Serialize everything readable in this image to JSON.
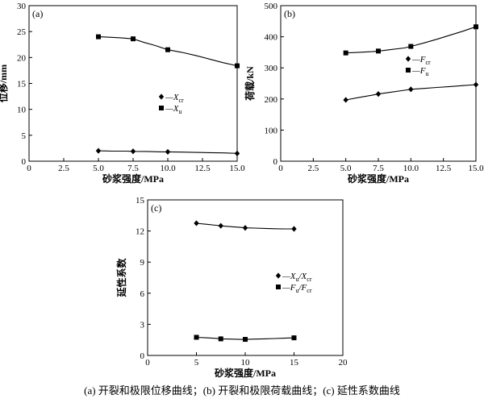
{
  "caption": "(a) 开裂和极限位移曲线；(b) 开裂和极限荷载曲线；(c) 延性系数曲线",
  "chart_data": [
    {
      "id": "a",
      "type": "line",
      "panel_label": "(a)",
      "xlabel": "砂浆强度/MPa",
      "ylabel": "位移/mm",
      "xlim": [
        0,
        15
      ],
      "ylim": [
        0,
        30
      ],
      "xticks": [
        "0",
        "2.5",
        "5.0",
        "7.5",
        "10.0",
        "12.5",
        "15.0"
      ],
      "xtick_values": [
        0,
        2.5,
        5,
        7.5,
        10,
        12.5,
        15
      ],
      "yticks": [
        "0",
        "5",
        "10",
        "15",
        "20",
        "25",
        "30"
      ],
      "ytick_values": [
        0,
        5,
        10,
        15,
        20,
        25,
        30
      ],
      "legend_position": "center-right",
      "series": [
        {
          "name": "—Xcr",
          "legend_main": "—X",
          "legend_sub": "cr",
          "marker": "diamond",
          "x": [
            5,
            7.5,
            10,
            15
          ],
          "y": [
            2.0,
            1.9,
            1.8,
            1.5
          ],
          "path_x": [
            5,
            6,
            7,
            7.5,
            8.5,
            9.5,
            10,
            11,
            12,
            13,
            14,
            15
          ],
          "path_y": [
            2.0,
            1.95,
            1.95,
            1.9,
            1.88,
            1.8,
            1.8,
            1.75,
            1.7,
            1.65,
            1.6,
            1.5
          ]
        },
        {
          "name": "—Xu",
          "legend_main": "—X",
          "legend_sub": "u",
          "marker": "square",
          "x": [
            5,
            7.5,
            10,
            15
          ],
          "y": [
            24.0,
            23.6,
            21.5,
            18.4
          ],
          "path_x": [
            5,
            5.8,
            6.6,
            7.5,
            8.3,
            9.1,
            10,
            11,
            12,
            13,
            14,
            15
          ],
          "path_y": [
            24.0,
            23.9,
            23.8,
            23.6,
            22.9,
            22.3,
            21.5,
            21.0,
            20.4,
            19.7,
            19.0,
            18.4
          ]
        }
      ]
    },
    {
      "id": "b",
      "type": "line",
      "panel_label": "(b)",
      "xlabel": "砂浆强度/MPa",
      "ylabel": "荷载/kN",
      "xlim": [
        0,
        15
      ],
      "ylim": [
        0,
        500
      ],
      "xticks": [
        "0",
        "2.5",
        "5.0",
        "7.5",
        "10.0",
        "12.5",
        "15.0"
      ],
      "xtick_values": [
        0,
        2.5,
        5,
        7.5,
        10,
        12.5,
        15
      ],
      "yticks": [
        "0",
        "100",
        "200",
        "300",
        "400",
        "500"
      ],
      "ytick_values": [
        0,
        100,
        200,
        300,
        400,
        500
      ],
      "legend_position": "center-right",
      "series": [
        {
          "name": "—Fcr",
          "legend_main": "—F",
          "legend_sub": "cr",
          "marker": "diamond",
          "x": [
            5,
            7.5,
            10,
            15
          ],
          "y": [
            197,
            216,
            231,
            246
          ],
          "path_x": [
            5,
            6,
            7,
            7.5,
            8.5,
            9.5,
            10,
            11,
            12,
            13,
            14,
            15
          ],
          "path_y": [
            197,
            205,
            212,
            216,
            222,
            228,
            231,
            234,
            237,
            240,
            243,
            246
          ]
        },
        {
          "name": "—Fu",
          "legend_main": "—F",
          "legend_sub": "u",
          "marker": "square",
          "x": [
            5,
            7.5,
            10,
            15
          ],
          "y": [
            348,
            354,
            369,
            432
          ],
          "path_x": [
            5,
            6,
            7,
            7.5,
            8.5,
            9.5,
            10,
            11,
            12,
            13,
            14,
            15
          ],
          "path_y": [
            348,
            350,
            352,
            354,
            359,
            364,
            369,
            380,
            392,
            405,
            418,
            432
          ]
        }
      ]
    },
    {
      "id": "c",
      "type": "line",
      "panel_label": "(c)",
      "xlabel": "砂浆强度/MPa",
      "ylabel": "延性系数",
      "xlim": [
        0,
        20
      ],
      "ylim": [
        0,
        15
      ],
      "xticks": [
        "0",
        "5",
        "10",
        "15",
        "20"
      ],
      "xtick_values": [
        0,
        5,
        10,
        15,
        20
      ],
      "yticks": [
        "0",
        "3",
        "6",
        "9",
        "12",
        "15"
      ],
      "ytick_values": [
        0,
        3,
        6,
        9,
        12,
        15
      ],
      "legend_position": "center-right",
      "series": [
        {
          "name": "—Xu/Xcr",
          "legend_parts": [
            [
              "—X",
              ""
            ],
            [
              "u",
              "sub"
            ],
            [
              "/X",
              ""
            ],
            [
              "cr",
              "sub"
            ]
          ],
          "marker": "diamond",
          "x": [
            5,
            7.5,
            10,
            15
          ],
          "y": [
            12.75,
            12.5,
            12.3,
            12.2
          ],
          "path_x": [
            5,
            6,
            7,
            7.5,
            8.5,
            9.5,
            10,
            11,
            12,
            13,
            14,
            15
          ],
          "path_y": [
            12.75,
            12.65,
            12.55,
            12.5,
            12.42,
            12.35,
            12.3,
            12.28,
            12.25,
            12.22,
            12.2,
            12.2
          ]
        },
        {
          "name": "—Fu/Fcr",
          "legend_parts": [
            [
              "—F",
              ""
            ],
            [
              "u",
              "sub"
            ],
            [
              "/F",
              ""
            ],
            [
              "cr",
              "sub"
            ]
          ],
          "marker": "square",
          "x": [
            5,
            7.5,
            10,
            15
          ],
          "y": [
            1.75,
            1.6,
            1.55,
            1.7
          ],
          "path_x": [
            5,
            6,
            7,
            7.5,
            8.5,
            9.5,
            10,
            11,
            12,
            13,
            14,
            15
          ],
          "path_y": [
            1.75,
            1.7,
            1.65,
            1.6,
            1.58,
            1.55,
            1.55,
            1.58,
            1.6,
            1.63,
            1.66,
            1.7
          ]
        }
      ]
    }
  ]
}
